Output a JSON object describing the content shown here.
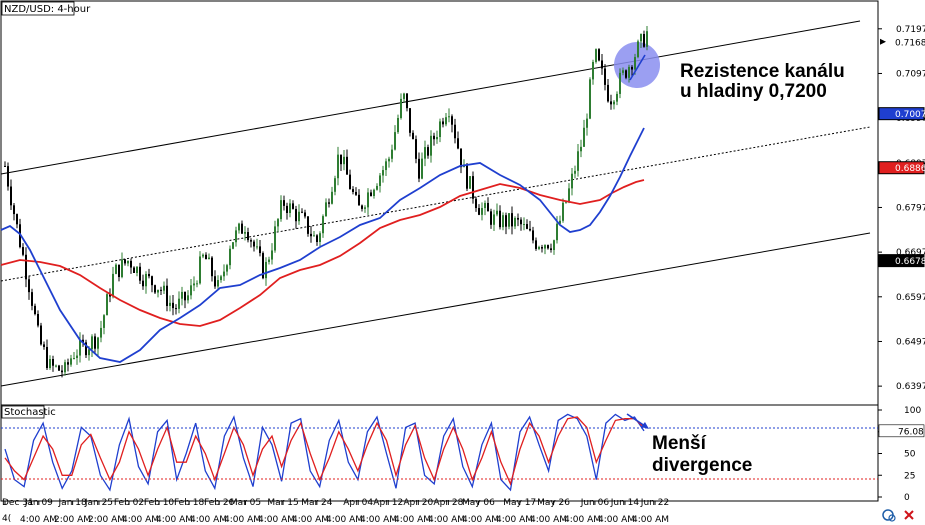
{
  "toolbar": {
    "symbol": "NZD/USD: 4-hour",
    "indicator": "Stochastic",
    "footer_left": "4(",
    "time_label": "4:00 AM",
    "misc_labels": [
      "2:00 AM",
      "2:00 AM"
    ]
  },
  "annotations": {
    "resistance": [
      "Rezistence kanálu",
      "u hladiny 0,7200"
    ],
    "divergence": [
      "Menší",
      "divergence"
    ]
  },
  "colors": {
    "background": "#ffffff",
    "bull_candle": "#2e7d32",
    "bear_candle": "#000000",
    "sma_fast": "#1f3fcf",
    "sma_slow": "#e01f1f",
    "channel": "#000000",
    "highlight_circle": "#8a8ef0",
    "stoch_k": "#1f3fcf",
    "stoch_d": "#e01f1f",
    "price_marker": "#000000",
    "sma_fast_marker": "#1f3fcf",
    "sma_slow_marker": "#e01f1f",
    "last_close_marker": "#000000"
  },
  "chart_data": [
    {
      "type": "candlestick",
      "title": "NZD/USD: 4-hour",
      "ylim": [
        0.6357,
        0.7257
      ],
      "y_ticks": [
        0.6397,
        0.6497,
        0.6597,
        0.6697,
        0.6797,
        0.6897,
        0.6997,
        0.7097,
        0.7197
      ],
      "x_ticks": [
        "Dec 31",
        "Jan 09",
        "Jan 18",
        "Jan 25",
        "Feb 02",
        "Feb 10",
        "Feb 18",
        "Feb 26",
        "Mar 05",
        "Mar 15",
        "Mar 24",
        "Apr 04",
        "Apr 12",
        "Apr 20",
        "Apr 28",
        "May 06",
        "May 17",
        "May 26",
        "Jun 06",
        "Jun 14",
        "Jun 22"
      ],
      "price_markers": [
        {
          "label": "0.7168",
          "value": 0.7168,
          "kind": "price"
        },
        {
          "label": "0.7007",
          "value": 0.7007,
          "kind": "sma_fast"
        },
        {
          "label": "0.6886",
          "value": 0.6886,
          "kind": "sma_slow"
        },
        {
          "label": "0.6678",
          "value": 0.6678,
          "kind": "last_close"
        }
      ],
      "close_path": [
        {
          "x": "Dec 31",
          "y": 0.689
        },
        {
          "x": "Jan 03",
          "y": 0.676
        },
        {
          "x": "Jan 07",
          "y": 0.66
        },
        {
          "x": "Jan 09",
          "y": 0.65
        },
        {
          "x": "Jan 12",
          "y": 0.644
        },
        {
          "x": "Jan 16",
          "y": 0.643
        },
        {
          "x": "Jan 18",
          "y": 0.647
        },
        {
          "x": "Jan 22",
          "y": 0.649
        },
        {
          "x": "Jan 25",
          "y": 0.651
        },
        {
          "x": "Jan 29",
          "y": 0.665
        },
        {
          "x": "Feb 02",
          "y": 0.668
        },
        {
          "x": "Feb 06",
          "y": 0.664
        },
        {
          "x": "Feb 10",
          "y": 0.662
        },
        {
          "x": "Feb 14",
          "y": 0.657
        },
        {
          "x": "Feb 18",
          "y": 0.66
        },
        {
          "x": "Feb 22",
          "y": 0.669
        },
        {
          "x": "Feb 26",
          "y": 0.661
        },
        {
          "x": "Mar 01",
          "y": 0.672
        },
        {
          "x": "Mar 05",
          "y": 0.676
        },
        {
          "x": "Mar 10",
          "y": 0.665
        },
        {
          "x": "Mar 15",
          "y": 0.681
        },
        {
          "x": "Mar 20",
          "y": 0.677
        },
        {
          "x": "Mar 24",
          "y": 0.672
        },
        {
          "x": "Mar 30",
          "y": 0.692
        },
        {
          "x": "Apr 04",
          "y": 0.679
        },
        {
          "x": "Apr 08",
          "y": 0.685
        },
        {
          "x": "Apr 12",
          "y": 0.69
        },
        {
          "x": "Apr 16",
          "y": 0.705
        },
        {
          "x": "Apr 20",
          "y": 0.688
        },
        {
          "x": "Apr 24",
          "y": 0.695
        },
        {
          "x": "Apr 28",
          "y": 0.703
        },
        {
          "x": "May 02",
          "y": 0.688
        },
        {
          "x": "May 06",
          "y": 0.68
        },
        {
          "x": "May 10",
          "y": 0.677
        },
        {
          "x": "May 17",
          "y": 0.676
        },
        {
          "x": "May 21",
          "y": 0.672
        },
        {
          "x": "May 26",
          "y": 0.672
        },
        {
          "x": "May 30",
          "y": 0.683
        },
        {
          "x": "Jun 03",
          "y": 0.696
        },
        {
          "x": "Jun 06",
          "y": 0.714
        },
        {
          "x": "Jun 10",
          "y": 0.704
        },
        {
          "x": "Jun 14",
          "y": 0.71
        },
        {
          "x": "Jun 18",
          "y": 0.716
        },
        {
          "x": "Jun 20",
          "y": 0.719
        }
      ]
    },
    {
      "type": "line",
      "title": "Stochastic",
      "ylim": [
        0,
        100
      ],
      "y_ticks": [
        0,
        25,
        50,
        75,
        100
      ],
      "levels": [
        20,
        80
      ],
      "last_value_label": "76.08",
      "last_value": 76.08,
      "series": [
        {
          "values": [
            55,
            20,
            12,
            65,
            85,
            40,
            10,
            30,
            80,
            70,
            25,
            8,
            60,
            90,
            35,
            15,
            75,
            88,
            20,
            50,
            85,
            30,
            10,
            70,
            92,
            45,
            12,
            80,
            60,
            18,
            85,
            90,
            30,
            12,
            65,
            88,
            40,
            20,
            75,
            92,
            50,
            10,
            80,
            85,
            25,
            15,
            70,
            90,
            35,
            12,
            60,
            85,
            20,
            8,
            75,
            92,
            60,
            30,
            88,
            95,
            90,
            70,
            20,
            85,
            95,
            88,
            92,
            76
          ]
        },
        {
          "values": [
            45,
            30,
            20,
            45,
            70,
            55,
            25,
            25,
            60,
            72,
            45,
            20,
            40,
            75,
            55,
            25,
            55,
            80,
            40,
            40,
            70,
            50,
            20,
            50,
            80,
            60,
            25,
            55,
            70,
            35,
            65,
            85,
            50,
            20,
            45,
            75,
            55,
            30,
            60,
            85,
            65,
            25,
            60,
            82,
            45,
            20,
            55,
            80,
            55,
            20,
            45,
            75,
            40,
            15,
            55,
            85,
            70,
            40,
            70,
            90,
            92,
            80,
            40,
            65,
            88,
            90,
            90,
            80
          ]
        }
      ]
    }
  ]
}
